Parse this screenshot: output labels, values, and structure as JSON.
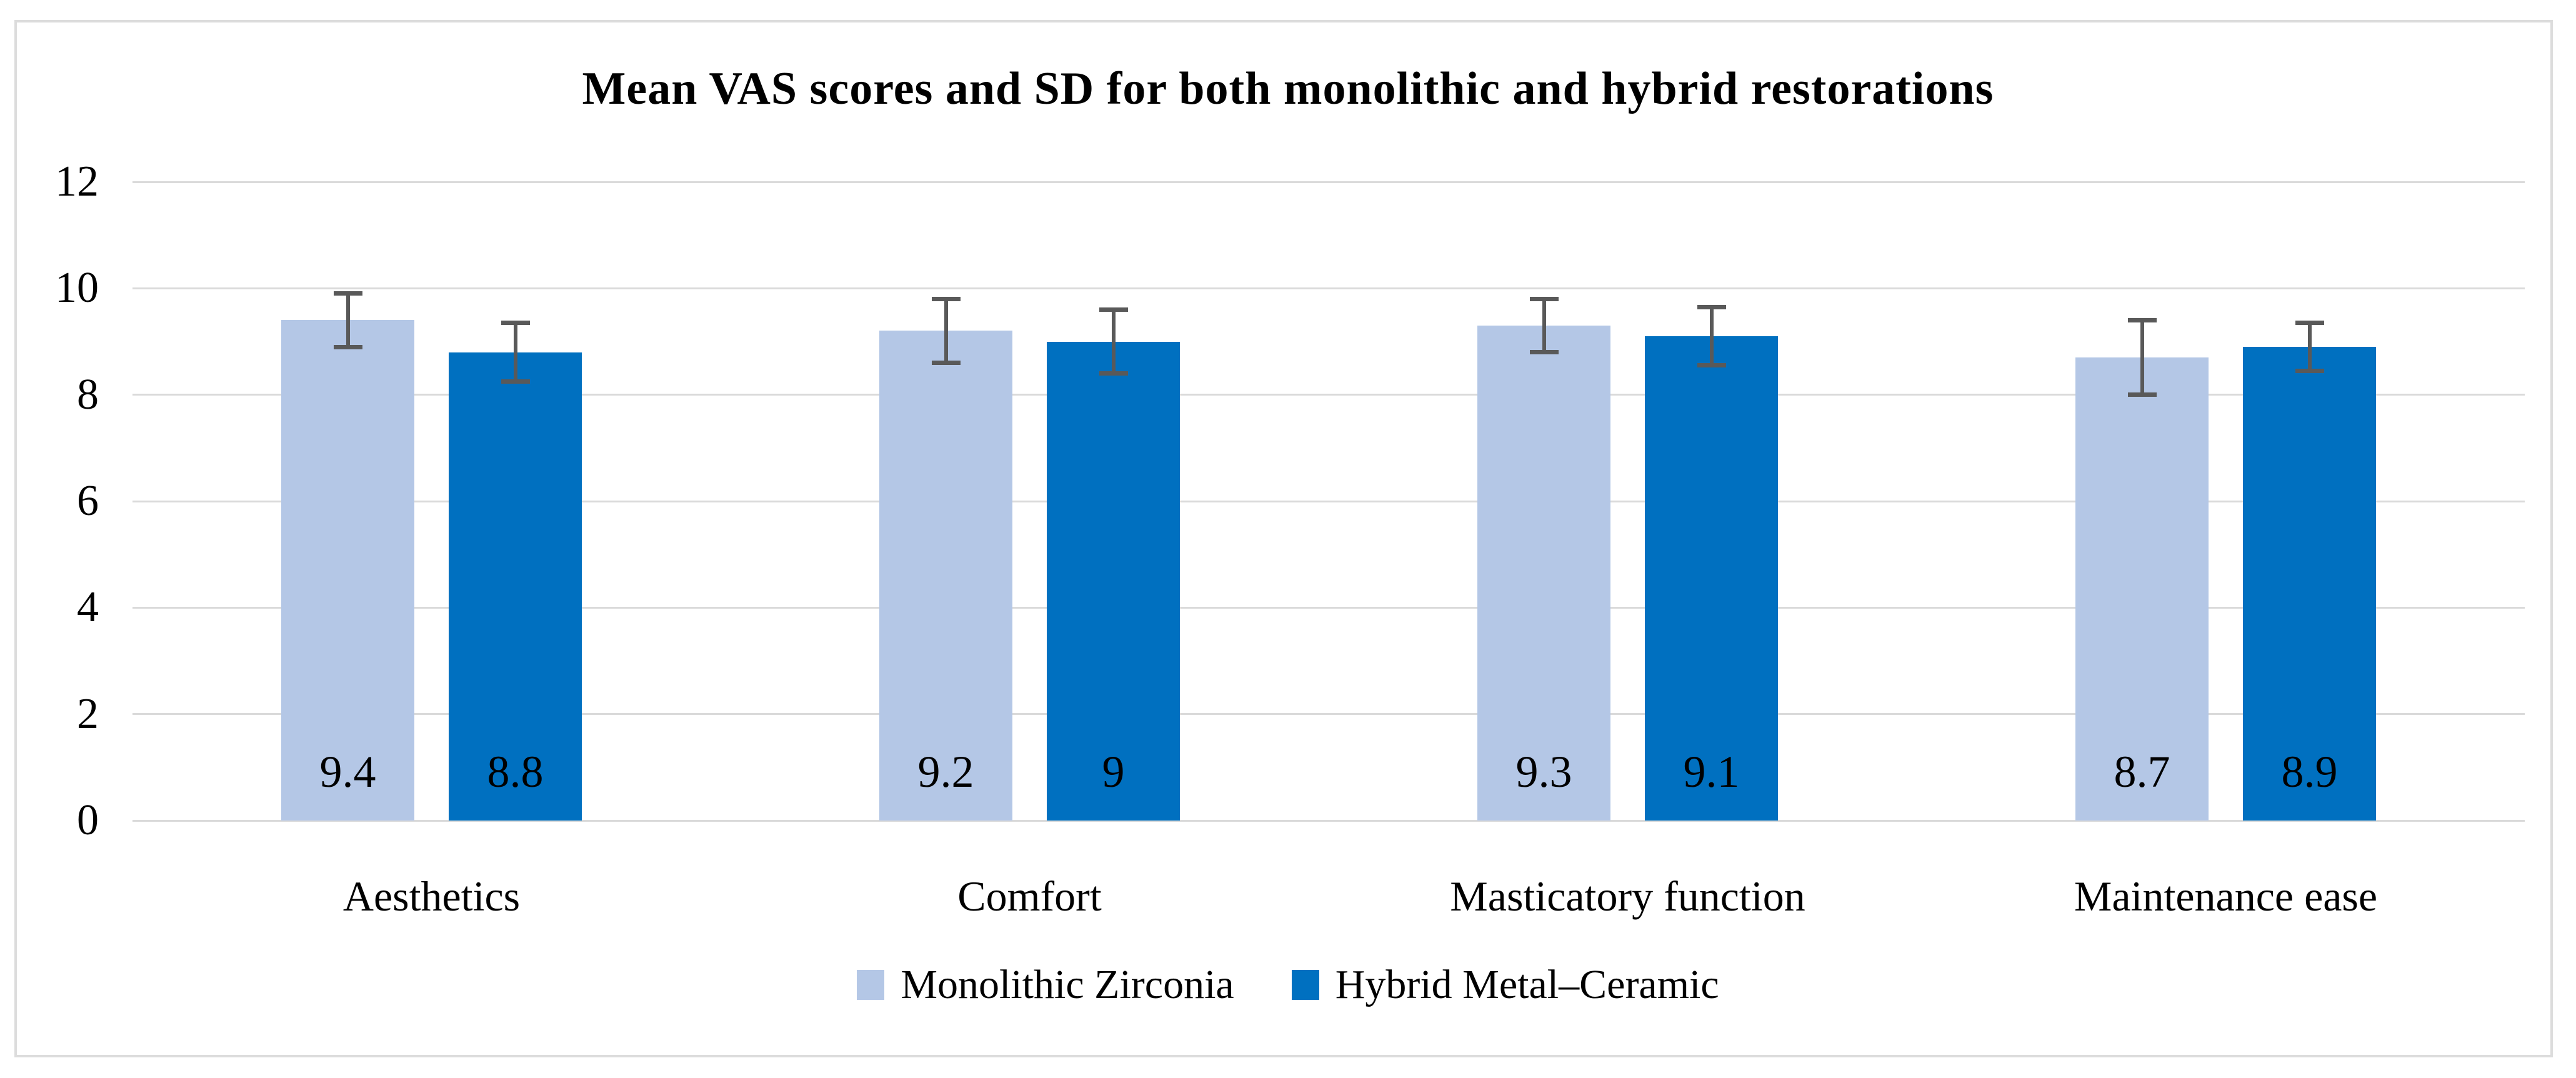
{
  "figure": {
    "background": "#FFFFFF",
    "border_color": "#DCDCDC"
  },
  "chart_data": {
    "type": "bar",
    "title": "Mean VAS scores and SD for both monolithic and hybrid restorations",
    "categories": [
      "Aesthetics",
      "Comfort",
      "Masticatory function",
      "Maintenance ease"
    ],
    "series": [
      {
        "name": "Monolithic Zirconia",
        "color": "#B4C7E6",
        "values": [
          9.4,
          9.2,
          9.3,
          8.7
        ],
        "labels": [
          "9.4",
          "9.2",
          "9.3",
          "8.7"
        ],
        "sd": [
          0.5,
          0.6,
          0.5,
          0.7
        ]
      },
      {
        "name": "Hybrid Metal–Ceramic",
        "color": "#0070C0",
        "values": [
          8.8,
          9.0,
          9.1,
          8.9
        ],
        "labels": [
          "8.8",
          "9",
          "9.1",
          "8.9"
        ],
        "sd": [
          0.55,
          0.6,
          0.55,
          0.45
        ]
      }
    ],
    "ylim": [
      0,
      12
    ],
    "yticks": [
      0,
      2,
      4,
      6,
      8,
      10,
      12
    ],
    "grid": true,
    "gridline_color": "#DADADA",
    "error_bar_color": "#595959",
    "text_color": "#000000",
    "legend_position": "bottom",
    "value_label_position": "inside-base"
  }
}
